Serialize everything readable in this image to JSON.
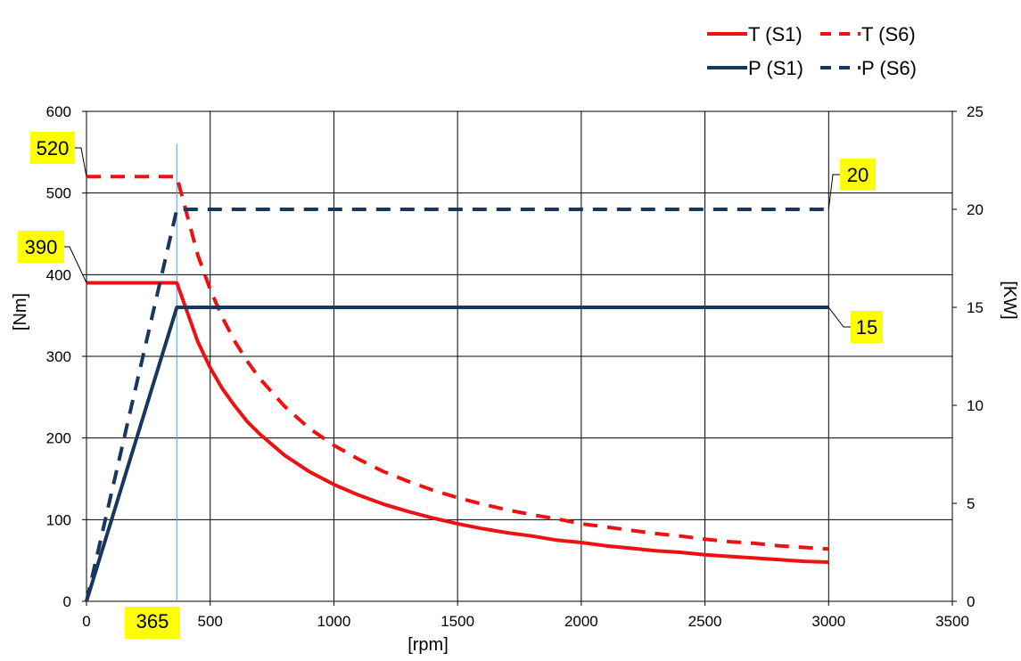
{
  "chart_data": {
    "type": "line",
    "xlabel": "[rpm]",
    "ylabel_left": "[Nm]",
    "ylabel_right": "[KW]",
    "xlim": [
      0,
      3500
    ],
    "ylim_left": [
      0,
      600
    ],
    "ylim_right": [
      0,
      25
    ],
    "x_ticks": [
      0,
      500,
      1000,
      1500,
      2000,
      2500,
      3000,
      3500
    ],
    "y_left_ticks": [
      0,
      100,
      200,
      300,
      400,
      500,
      600
    ],
    "y_right_ticks": [
      0,
      5,
      10,
      15,
      20,
      25
    ],
    "grid": true,
    "legend_position": "top-right",
    "colors": {
      "torque": "#ee1111",
      "power": "#17375e",
      "marker_line": "#5b9bd5",
      "callout_bg": "#ffff00"
    },
    "series": [
      {
        "name": "T (S1)",
        "axis": "left",
        "style": "solid",
        "color": "#ee1111",
        "x": [
          0,
          365,
          450,
          500,
          550,
          600,
          650,
          700,
          800,
          900,
          1000,
          1100,
          1200,
          1300,
          1400,
          1500,
          1600,
          1700,
          1800,
          1900,
          2000,
          2100,
          2200,
          2300,
          2400,
          2500,
          2600,
          2700,
          2800,
          2900,
          3000
        ],
        "values": [
          390,
          390,
          318,
          286,
          260,
          239,
          220,
          205,
          179,
          159,
          143,
          130,
          119,
          110,
          102,
          95,
          89,
          84,
          80,
          75,
          72,
          68,
          65,
          62,
          60,
          57,
          55,
          53,
          51,
          49,
          48
        ]
      },
      {
        "name": "T (S6)",
        "axis": "left",
        "style": "dashed",
        "color": "#ee1111",
        "x": [
          0,
          365,
          450,
          500,
          550,
          600,
          650,
          700,
          800,
          900,
          1000,
          1100,
          1200,
          1300,
          1400,
          1500,
          1600,
          1700,
          1800,
          1900,
          2000,
          2100,
          2200,
          2300,
          2400,
          2500,
          2600,
          2700,
          2800,
          2900,
          3000
        ],
        "values": [
          520,
          520,
          424,
          382,
          347,
          318,
          294,
          273,
          239,
          212,
          191,
          174,
          159,
          147,
          136,
          127,
          119,
          112,
          106,
          101,
          95,
          91,
          87,
          83,
          80,
          76,
          73,
          71,
          68,
          66,
          64
        ]
      },
      {
        "name": "P (S1)",
        "axis": "right",
        "style": "solid",
        "color": "#17375e",
        "x": [
          0,
          365,
          3000
        ],
        "values": [
          0,
          15,
          15
        ]
      },
      {
        "name": "P (S6)",
        "axis": "right",
        "style": "dashed",
        "color": "#17375e",
        "x": [
          0,
          365,
          3000
        ],
        "values": [
          0,
          20,
          20
        ]
      }
    ],
    "annotations": [
      {
        "label": "520",
        "axis": "left",
        "x": 0,
        "value": 520
      },
      {
        "label": "390",
        "axis": "left",
        "x": 0,
        "value": 390
      },
      {
        "label": "20",
        "axis": "right",
        "x": 3000,
        "value": 20
      },
      {
        "label": "15",
        "axis": "right",
        "x": 3000,
        "value": 15
      },
      {
        "label": "365",
        "axis": "x",
        "x": 365
      }
    ]
  }
}
